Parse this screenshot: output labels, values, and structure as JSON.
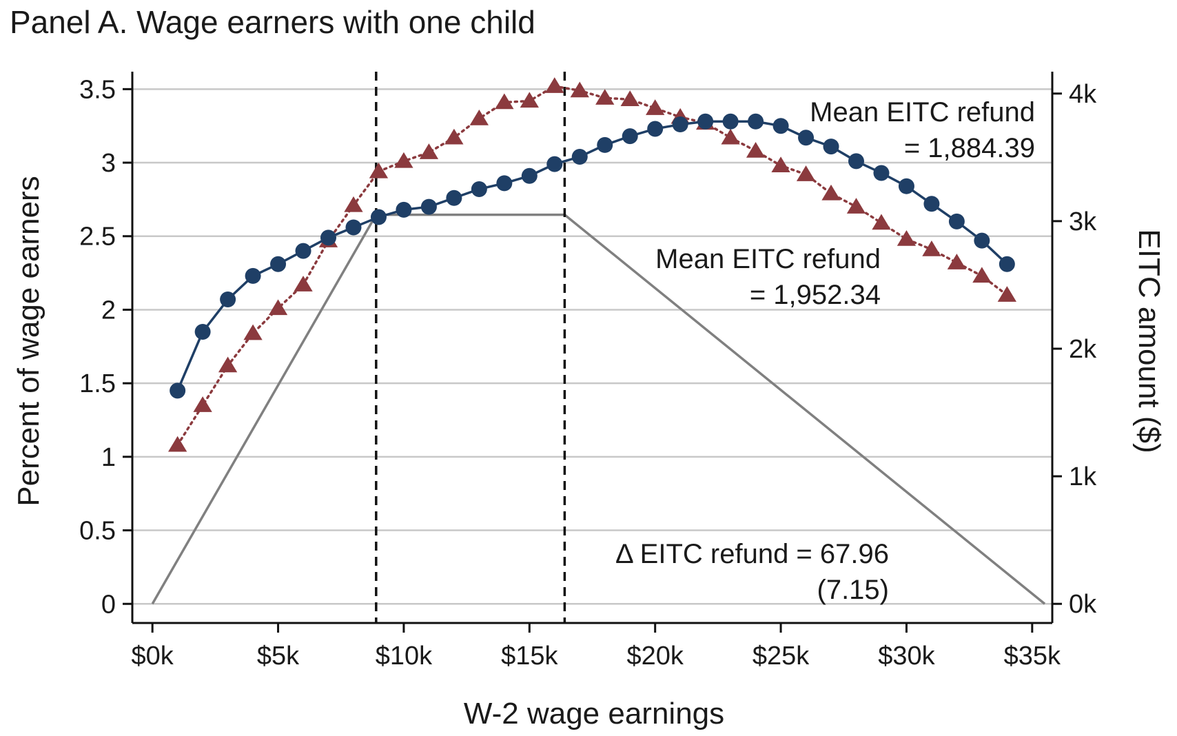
{
  "chart_data": {
    "type": "line",
    "title": "Panel A. Wage earners with one child",
    "xlabel": "W-2 wage earnings",
    "ylabel": "Percent of wage earners",
    "y2label": "EITC amount ($)",
    "xlim": [
      -0.8,
      35.8
    ],
    "ylim": [
      -0.13,
      3.6
    ],
    "y2lim": [
      -150,
      4150
    ],
    "x_ticks": [
      0,
      5,
      10,
      15,
      20,
      25,
      30,
      35
    ],
    "x_tick_labels": [
      "$0k",
      "$5k",
      "$10k",
      "$15k",
      "$20k",
      "$25k",
      "$30k",
      "$35k"
    ],
    "y_ticks": [
      0,
      0.5,
      1,
      1.5,
      2,
      2.5,
      3,
      3.5
    ],
    "y_tick_labels": [
      "0",
      "0.5",
      "1",
      "1.5",
      "2",
      "2.5",
      "3",
      "3.5"
    ],
    "y2_ticks": [
      0,
      1000,
      2000,
      3000,
      4000
    ],
    "y2_tick_labels": [
      "0k",
      "1k",
      "2k",
      "3k",
      "4k"
    ],
    "grid": true,
    "vertical_lines": [
      8.9,
      16.4
    ],
    "series": [
      {
        "color": "#1f3f66",
        "marker": "circle",
        "line_style": "solid",
        "axis": "left",
        "x": [
          1,
          2,
          3,
          4,
          5,
          6,
          7,
          8,
          9,
          10,
          11,
          12,
          13,
          14,
          15,
          16,
          17,
          18,
          19,
          20,
          21,
          22,
          23,
          24,
          25,
          26,
          27,
          28,
          29,
          30,
          31,
          32,
          33,
          34
        ],
        "y": [
          1.45,
          1.85,
          2.07,
          2.23,
          2.31,
          2.4,
          2.49,
          2.56,
          2.63,
          2.68,
          2.7,
          2.76,
          2.82,
          2.86,
          2.91,
          2.99,
          3.04,
          3.12,
          3.18,
          3.23,
          3.26,
          3.28,
          3.28,
          3.28,
          3.25,
          3.17,
          3.11,
          3.01,
          2.93,
          2.84,
          2.72,
          2.6,
          2.47,
          2.31
        ]
      },
      {
        "color": "#8b3a3e",
        "marker": "triangle",
        "line_style": "dotted",
        "axis": "left",
        "x": [
          1,
          2,
          3,
          4,
          5,
          6,
          7,
          8,
          9,
          10,
          11,
          12,
          13,
          14,
          15,
          16,
          17,
          18,
          19,
          20,
          21,
          22,
          23,
          24,
          25,
          26,
          27,
          28,
          29,
          30,
          31,
          32,
          33,
          34
        ],
        "y": [
          1.08,
          1.35,
          1.62,
          1.84,
          2.01,
          2.17,
          2.47,
          2.71,
          2.94,
          3.01,
          3.07,
          3.17,
          3.3,
          3.41,
          3.42,
          3.52,
          3.49,
          3.44,
          3.43,
          3.37,
          3.31,
          3.27,
          3.17,
          3.08,
          2.98,
          2.92,
          2.79,
          2.7,
          2.59,
          2.48,
          2.41,
          2.32,
          2.23,
          2.1
        ]
      },
      {
        "color": "#808080",
        "marker": "none",
        "line_style": "solid",
        "axis": "right",
        "x": [
          0,
          8.9,
          16.4,
          35.5
        ],
        "y": [
          0,
          3050,
          3050,
          0
        ]
      }
    ],
    "annotations": [
      {
        "id": "refund-a",
        "lines": [
          "Mean EITC refund",
          "= 1,884.39"
        ]
      },
      {
        "id": "refund-b",
        "lines": [
          "Mean EITC refund",
          "= 1,952.34"
        ]
      },
      {
        "id": "delta",
        "lines": [
          "Δ EITC refund = 67.96",
          "(7.15)"
        ]
      }
    ]
  }
}
